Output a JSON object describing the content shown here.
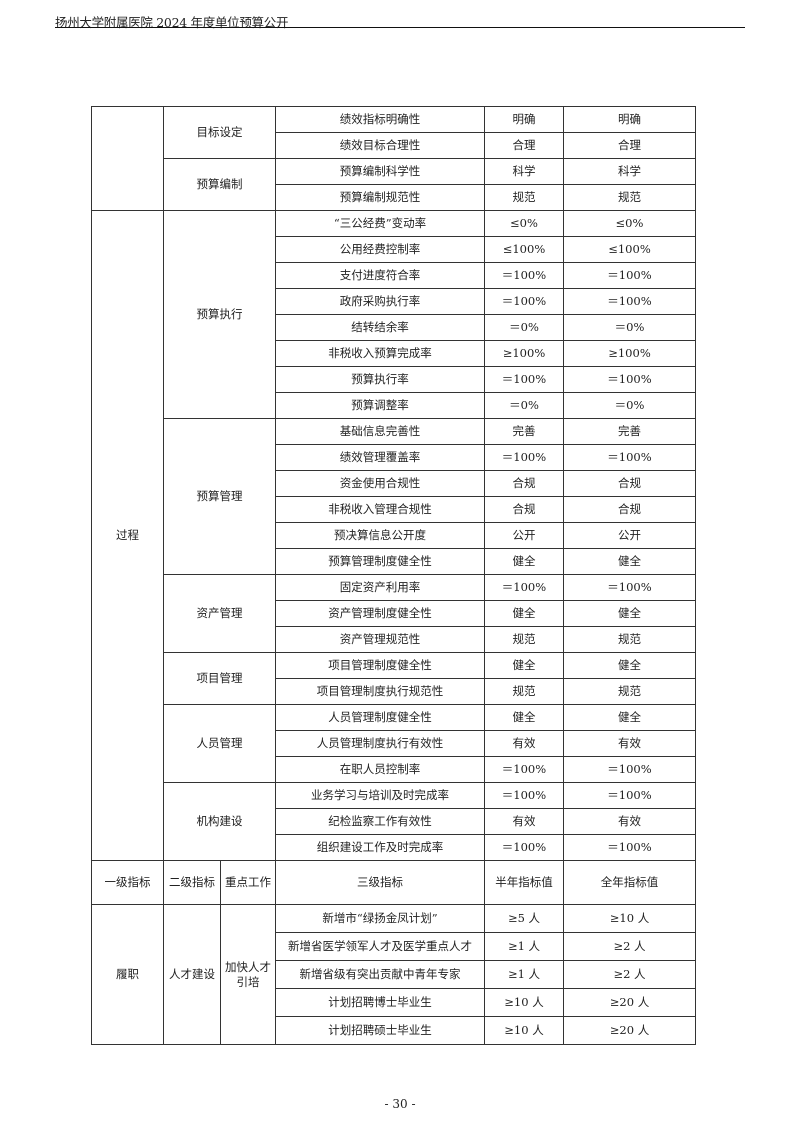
{
  "header": {
    "title": "扬州大学附属医院 2024 年度单位预算公开"
  },
  "table_top": {
    "sections": [
      {
        "level1": "",
        "groups": [
          {
            "name": "目标设定",
            "rows": [
              [
                "绩效指标明确性",
                "明确",
                "明确"
              ],
              [
                "绩效目标合理性",
                "合理",
                "合理"
              ]
            ]
          },
          {
            "name": "预算编制",
            "rows": [
              [
                "预算编制科学性",
                "科学",
                "科学"
              ],
              [
                "预算编制规范性",
                "规范",
                "规范"
              ]
            ]
          }
        ]
      },
      {
        "level1": "过程",
        "groups": [
          {
            "name": "预算执行",
            "rows": [
              [
                "“三公经费”变动率",
                "≤0%",
                "≤0%"
              ],
              [
                "公用经费控制率",
                "≤100%",
                "≤100%"
              ],
              [
                "支付进度符合率",
                "＝100%",
                "＝100%"
              ],
              [
                "政府采购执行率",
                "＝100%",
                "＝100%"
              ],
              [
                "结转结余率",
                "＝0%",
                "＝0%"
              ],
              [
                "非税收入预算完成率",
                "≥100%",
                "≥100%"
              ],
              [
                "预算执行率",
                "＝100%",
                "＝100%"
              ],
              [
                "预算调整率",
                "＝0%",
                "＝0%"
              ]
            ]
          },
          {
            "name": "预算管理",
            "rows": [
              [
                "基础信息完善性",
                "完善",
                "完善"
              ],
              [
                "绩效管理覆盖率",
                "＝100%",
                "＝100%"
              ],
              [
                "资金使用合规性",
                "合规",
                "合规"
              ],
              [
                "非税收入管理合规性",
                "合规",
                "合规"
              ],
              [
                "预决算信息公开度",
                "公开",
                "公开"
              ],
              [
                "预算管理制度健全性",
                "健全",
                "健全"
              ]
            ]
          },
          {
            "name": "资产管理",
            "rows": [
              [
                "固定资产利用率",
                "＝100%",
                "＝100%"
              ],
              [
                "资产管理制度健全性",
                "健全",
                "健全"
              ],
              [
                "资产管理规范性",
                "规范",
                "规范"
              ]
            ]
          },
          {
            "name": "项目管理",
            "rows": [
              [
                "项目管理制度健全性",
                "健全",
                "健全"
              ],
              [
                "项目管理制度执行规范性",
                "规范",
                "规范"
              ]
            ]
          },
          {
            "name": "人员管理",
            "rows": [
              [
                "人员管理制度健全性",
                "健全",
                "健全"
              ],
              [
                "人员管理制度执行有效性",
                "有效",
                "有效"
              ],
              [
                "在职人员控制率",
                "＝100%",
                "＝100%"
              ]
            ]
          },
          {
            "name": "机构建设",
            "rows": [
              [
                "业务学习与培训及时完成率",
                "＝100%",
                "＝100%"
              ],
              [
                "纪检监察工作有效性",
                "有效",
                "有效"
              ],
              [
                "组织建设工作及时完成率",
                "＝100%",
                "＝100%"
              ]
            ]
          }
        ]
      }
    ]
  },
  "table_bottom": {
    "headers": [
      "一级指标",
      "二级指标",
      "重点工作",
      "三级指标",
      "半年指标值",
      "全年指标值"
    ],
    "level1": "履职",
    "level2": "人才建设",
    "key_work": "加快人才引培",
    "rows": [
      [
        "新增市“绿扬金凤计划”",
        "≥5 人",
        "≥10 人"
      ],
      [
        "新增省医学领军人才及医学重点人才",
        "≥1 人",
        "≥2 人"
      ],
      [
        "新增省级有突出贡献中青年专家",
        "≥1 人",
        "≥2 人"
      ],
      [
        "计划招聘博士毕业生",
        "≥10 人",
        "≥20 人"
      ],
      [
        "计划招聘硕士毕业生",
        "≥10 人",
        "≥20 人"
      ]
    ]
  },
  "footer": {
    "page_number": "- 30 -"
  }
}
